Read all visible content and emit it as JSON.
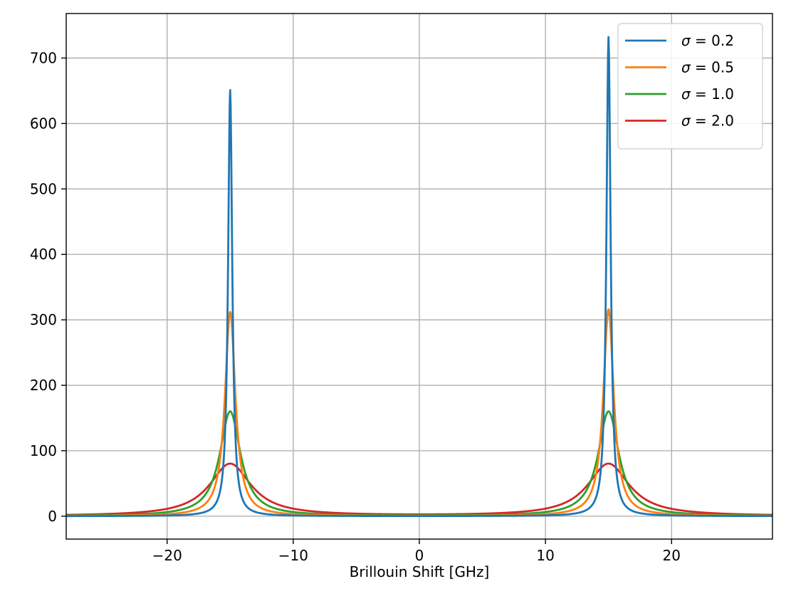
{
  "chart_data": {
    "type": "line",
    "title": "",
    "xlabel": "Brillouin Shift [GHz]",
    "ylabel": "",
    "xlim": [
      -28,
      28
    ],
    "ylim": [
      -35,
      768
    ],
    "xticks": [
      -20,
      -10,
      0,
      10,
      20
    ],
    "xtick_labels": [
      "−20",
      "−10",
      "0",
      "10",
      "20"
    ],
    "yticks": [
      0,
      100,
      200,
      300,
      400,
      500,
      600,
      700
    ],
    "ytick_labels": [
      "0",
      "100",
      "200",
      "300",
      "400",
      "500",
      "600",
      "700"
    ],
    "grid": true,
    "legend_position": "top-right",
    "peaks": [
      -15,
      15
    ],
    "series": [
      {
        "name": "σ = 0.2",
        "sigma_value": "0.2",
        "color": "#1f77b4",
        "sigma": 0.2,
        "left_peak": 651,
        "right_peak": 732
      },
      {
        "name": "σ = 0.5",
        "sigma_value": "0.5",
        "color": "#ff7f0e",
        "sigma": 0.5,
        "left_peak": 312,
        "right_peak": 316
      },
      {
        "name": "σ = 1.0",
        "sigma_value": "1.0",
        "color": "#2ca02c",
        "sigma": 1.0,
        "left_peak": 160,
        "right_peak": 160
      },
      {
        "name": "σ = 2.0",
        "sigma_value": "2.0",
        "color": "#d62728",
        "sigma": 2.0,
        "left_peak": 80,
        "right_peak": 80
      }
    ]
  }
}
